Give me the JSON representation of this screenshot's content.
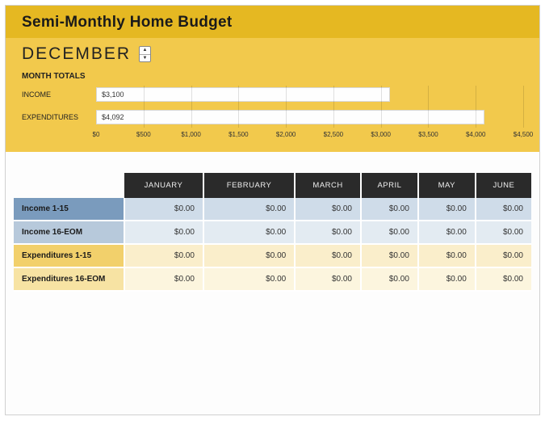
{
  "title": "Semi-Monthly Home Budget",
  "selected_month": "DECEMBER",
  "totals_label": "MONTH TOTALS",
  "chart": {
    "type": "bar-horizontal",
    "background_color": "#f2c94c",
    "bar_color": "#fefefe",
    "bar_border_color": "#d8d8d8",
    "xlim": [
      0,
      4500
    ],
    "tick_step": 500,
    "tick_labels": [
      "$0",
      "$500",
      "$1,000",
      "$1,500",
      "$2,000",
      "$2,500",
      "$3,000",
      "$3,500",
      "$4,000",
      "$4,500"
    ],
    "series": [
      {
        "label": "INCOME",
        "value": 3100,
        "display": "$3,100"
      },
      {
        "label": "EXPENDITURES",
        "value": 4092,
        "display": "$4,092"
      }
    ]
  },
  "table": {
    "columns": [
      "JANUARY",
      "FEBRUARY",
      "MARCH",
      "APRIL",
      "MAY",
      "JUNE"
    ],
    "rows": [
      {
        "key": "income-1",
        "class": "row-income-1",
        "label": "Income 1-15",
        "cells": [
          "$0.00",
          "$0.00",
          "$0.00",
          "$0.00",
          "$0.00",
          "$0.00"
        ]
      },
      {
        "key": "income-2",
        "class": "row-income-2",
        "label": "Income 16-EOM",
        "cells": [
          "$0.00",
          "$0.00",
          "$0.00",
          "$0.00",
          "$0.00",
          "$0.00"
        ]
      },
      {
        "key": "exp-1",
        "class": "row-exp-1",
        "label": "Expenditures 1-15",
        "cells": [
          "$0.00",
          "$0.00",
          "$0.00",
          "$0.00",
          "$0.00",
          "$0.00"
        ]
      },
      {
        "key": "exp-2",
        "class": "row-exp-2",
        "label": "Expenditures 16-EOM",
        "cells": [
          "$0.00",
          "$0.00",
          "$0.00",
          "$0.00",
          "$0.00",
          "$0.00"
        ]
      }
    ]
  },
  "colors": {
    "title_bar": "#e5b822",
    "header_body": "#f2c94c",
    "col_header_bg": "#2a2a2a",
    "col_header_fg": "#eeeeee"
  }
}
